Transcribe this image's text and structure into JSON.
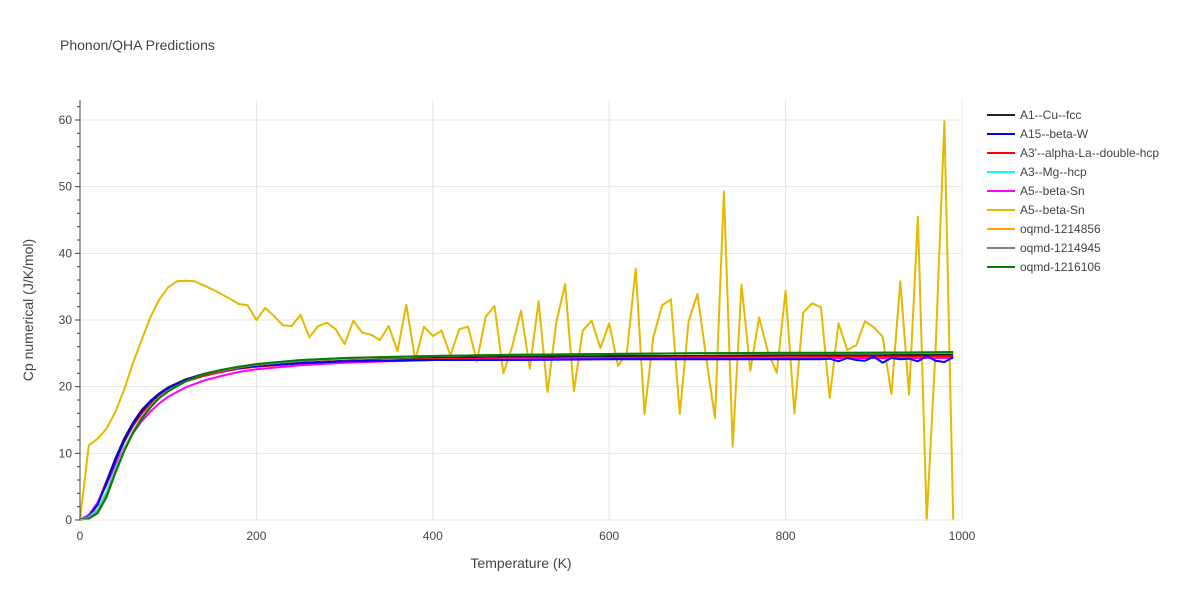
{
  "chart_data": {
    "type": "line",
    "title": "Phonon/QHA Predictions",
    "xlabel": "Temperature (K)",
    "ylabel": "Cp numerical (J/K/mol)",
    "xlim": [
      0,
      1000
    ],
    "ylim": [
      0,
      63
    ],
    "xticks": [
      0,
      200,
      400,
      600,
      800,
      1000
    ],
    "yticks": [
      0,
      10,
      20,
      30,
      40,
      50,
      60
    ],
    "grid": true,
    "legend_position": "right",
    "series": [
      {
        "name": "A1--Cu--fcc",
        "color": "#222222",
        "x": [
          0,
          10,
          20,
          30,
          40,
          50,
          60,
          70,
          80,
          90,
          100,
          120,
          140,
          160,
          180,
          200,
          250,
          300,
          350,
          400,
          500,
          600,
          700,
          800,
          900,
          990
        ],
        "y": [
          0,
          0.6,
          2.5,
          5.8,
          9.2,
          12.2,
          14.6,
          16.5,
          17.9,
          19.0,
          19.9,
          21.1,
          21.9,
          22.5,
          23.0,
          23.3,
          23.8,
          24.1,
          24.3,
          24.4,
          24.5,
          24.6,
          24.6,
          24.7,
          24.7,
          24.8
        ]
      },
      {
        "name": "A15--beta-W",
        "color": "#0000ff",
        "x": [
          0,
          10,
          20,
          30,
          40,
          50,
          60,
          70,
          80,
          90,
          100,
          120,
          140,
          160,
          180,
          200,
          250,
          300,
          350,
          400,
          500,
          600,
          700,
          800,
          840,
          850,
          860,
          870,
          880,
          890,
          900,
          910,
          920,
          930,
          940,
          950,
          960,
          970,
          980,
          990
        ],
        "y": [
          0,
          0.5,
          2.3,
          5.5,
          8.9,
          11.9,
          14.4,
          16.3,
          17.8,
          18.9,
          19.8,
          21.0,
          21.8,
          22.4,
          22.8,
          23.1,
          23.5,
          23.8,
          23.9,
          24.0,
          24.0,
          24.1,
          24.1,
          24.1,
          24.1,
          24.2,
          23.8,
          24.3,
          24.0,
          23.9,
          24.5,
          23.6,
          24.3,
          24.1,
          24.2,
          23.8,
          24.6,
          23.9,
          23.7,
          24.4
        ]
      },
      {
        "name": "A3'--alpha-La--double-hcp",
        "color": "#ff0000",
        "x": [
          0,
          10,
          20,
          30,
          40,
          50,
          60,
          70,
          80,
          90,
          100,
          120,
          140,
          160,
          180,
          200,
          250,
          300,
          400,
          500,
          600,
          700,
          800,
          900,
          990
        ],
        "y": [
          0,
          0.7,
          2.6,
          5.6,
          8.9,
          11.7,
          14.1,
          16.0,
          17.5,
          18.6,
          19.5,
          20.8,
          21.6,
          22.2,
          22.7,
          23.0,
          23.5,
          23.8,
          24.1,
          24.2,
          24.3,
          24.4,
          24.4,
          24.5,
          24.5
        ]
      },
      {
        "name": "A3--Mg--hcp",
        "color": "#00ffff",
        "x": [
          0,
          10,
          20,
          30,
          40,
          50,
          60,
          70,
          80,
          90,
          100,
          120,
          140,
          160,
          180,
          200,
          250,
          300,
          400,
          500,
          600,
          700,
          800,
          900,
          990
        ],
        "y": [
          0,
          0.4,
          1.6,
          4.2,
          7.6,
          10.7,
          13.3,
          15.4,
          17.1,
          18.4,
          19.4,
          20.8,
          21.8,
          22.4,
          22.9,
          23.3,
          23.9,
          24.2,
          24.6,
          24.8,
          24.9,
          25.0,
          25.0,
          25.1,
          25.1
        ]
      },
      {
        "name": "A5--beta-Sn",
        "color": "#ff00ff",
        "x": [
          0,
          10,
          20,
          30,
          40,
          50,
          60,
          70,
          80,
          90,
          100,
          120,
          140,
          160,
          180,
          200,
          250,
          300,
          350,
          400,
          500,
          600,
          700,
          800,
          900,
          990
        ],
        "y": [
          0,
          0.8,
          2.6,
          5.3,
          8.2,
          10.8,
          13.0,
          14.8,
          16.3,
          17.5,
          18.5,
          19.9,
          20.9,
          21.6,
          22.2,
          22.6,
          23.2,
          23.6,
          23.8,
          24.0,
          24.1,
          24.2,
          24.2,
          24.3,
          24.3,
          24.3
        ]
      },
      {
        "name": "A5--beta-Sn",
        "color": "#e6b800",
        "x": [
          0,
          10,
          20,
          30,
          40,
          50,
          60,
          70,
          80,
          90,
          100,
          110,
          120,
          130,
          140,
          150,
          160,
          170,
          180,
          190,
          200,
          210,
          220,
          230,
          240,
          250,
          260,
          270,
          280,
          290,
          300,
          310,
          320,
          330,
          340,
          350,
          360,
          370,
          380,
          390,
          400,
          410,
          420,
          430,
          440,
          450,
          460,
          470,
          480,
          490,
          500,
          510,
          520,
          530,
          540,
          550,
          560,
          570,
          580,
          590,
          600,
          610,
          620,
          630,
          640,
          650,
          660,
          670,
          680,
          690,
          700,
          710,
          720,
          730,
          740,
          750,
          760,
          770,
          780,
          790,
          800,
          810,
          820,
          830,
          840,
          850,
          860,
          870,
          880,
          890,
          900,
          910,
          920,
          930,
          940,
          950,
          960,
          970,
          980,
          990
        ],
        "y": [
          0,
          11.2,
          12.2,
          13.7,
          16.2,
          19.5,
          23.5,
          27.0,
          30.5,
          33.1,
          34.9,
          35.8,
          35.9,
          35.8,
          35.2,
          34.6,
          33.9,
          33.2,
          32.4,
          32.2,
          30.0,
          31.8,
          30.6,
          29.2,
          29.1,
          30.8,
          27.4,
          29.1,
          29.6,
          28.6,
          26.4,
          29.9,
          28.1,
          27.8,
          27.0,
          29.1,
          25.3,
          32.3,
          24.0,
          29.0,
          27.6,
          28.4,
          24.7,
          28.6,
          29.0,
          23.8,
          30.5,
          32.1,
          22.0,
          26.0,
          31.4,
          22.7,
          32.8,
          19.2,
          29.6,
          35.4,
          19.3,
          28.4,
          29.9,
          25.8,
          29.5,
          23.1,
          25.0,
          37.7,
          15.9,
          27.4,
          32.2,
          33.1,
          15.9,
          29.8,
          33.9,
          24.3,
          15.3,
          49.3,
          11.0,
          35.3,
          22.4,
          30.4,
          25.2,
          22.1,
          34.4,
          16.0,
          31.1,
          32.5,
          31.9,
          18.3,
          29.5,
          25.5,
          26.2,
          29.8,
          28.9,
          27.5,
          18.9,
          35.8,
          18.8,
          45.5,
          0.0,
          25.3,
          59.8,
          0.0
        ]
      },
      {
        "name": "oqmd-1214856",
        "color": "#ffa500",
        "x": [
          0,
          10,
          20,
          30,
          40,
          50,
          60,
          70,
          80,
          90,
          100,
          120,
          140,
          160,
          180,
          200,
          250,
          300,
          400,
          500,
          600,
          700,
          800,
          900,
          990
        ],
        "y": [
          0,
          0.3,
          1.3,
          3.8,
          7.3,
          10.5,
          13.2,
          15.4,
          17.1,
          18.4,
          19.4,
          20.8,
          21.8,
          22.4,
          22.9,
          23.3,
          23.9,
          24.2,
          24.6,
          24.8,
          24.9,
          25.0,
          25.0,
          25.1,
          25.1
        ]
      },
      {
        "name": "oqmd-1214945",
        "color": "#808080",
        "x": [
          0,
          10,
          20,
          30,
          40,
          50,
          60,
          70,
          80,
          90,
          100,
          120,
          140,
          160,
          180,
          200,
          250,
          300,
          400,
          500,
          600,
          700,
          800,
          900,
          990
        ],
        "y": [
          0,
          0.3,
          1.2,
          3.7,
          7.2,
          10.4,
          13.1,
          15.3,
          17.0,
          18.3,
          19.3,
          20.8,
          21.8,
          22.4,
          22.9,
          23.3,
          23.9,
          24.3,
          24.6,
          24.8,
          24.9,
          25.0,
          25.0,
          25.1,
          25.1
        ]
      },
      {
        "name": "oqmd-1216106",
        "color": "#008000",
        "x": [
          0,
          10,
          20,
          30,
          40,
          50,
          60,
          70,
          80,
          90,
          100,
          120,
          140,
          160,
          180,
          200,
          250,
          300,
          400,
          500,
          600,
          700,
          800,
          900,
          990
        ],
        "y": [
          0,
          0.2,
          1.0,
          3.4,
          7.0,
          10.3,
          13.0,
          15.2,
          16.9,
          18.3,
          19.3,
          20.8,
          21.8,
          22.5,
          23.0,
          23.4,
          24.0,
          24.3,
          24.6,
          24.8,
          24.9,
          25.0,
          25.1,
          25.1,
          25.2
        ]
      }
    ]
  }
}
